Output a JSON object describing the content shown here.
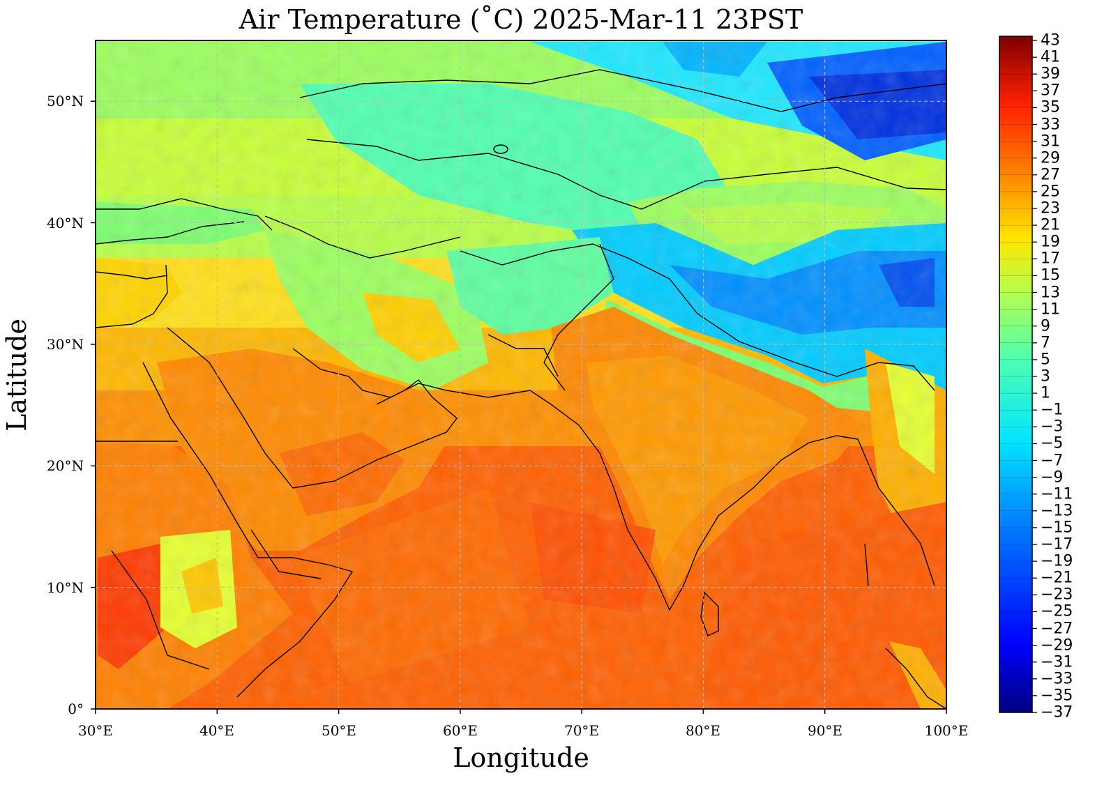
{
  "title": "Air Temperature (˚C)  2025-Mar-11 23PST",
  "xlabel": "Longitude",
  "ylabel": "Latitude",
  "map": {
    "variable": "Air Temperature",
    "units": "˚C",
    "lon_range": [
      30,
      100
    ],
    "lat_range": [
      0,
      55
    ],
    "grid": true,
    "xticks": [
      "30°E",
      "40°E",
      "50°E",
      "60°E",
      "70°E",
      "80°E",
      "90°E",
      "100°E"
    ],
    "yticks": [
      "0°",
      "10°N",
      "20°N",
      "30°N",
      "40°N",
      "50°N"
    ]
  },
  "colorbar": {
    "min": -37,
    "max": 43,
    "ticks": [
      "43",
      "41",
      "39",
      "37",
      "35",
      "33",
      "31",
      "29",
      "27",
      "25",
      "23",
      "21",
      "19",
      "17",
      "15",
      "13",
      "11",
      "9",
      "7",
      "5",
      "3",
      "1",
      "−1",
      "−3",
      "−5",
      "−7",
      "−9",
      "−11",
      "−13",
      "−15",
      "−17",
      "−19",
      "−21",
      "−23",
      "−25",
      "−27",
      "−29",
      "−31",
      "−33",
      "−35",
      "−37"
    ],
    "colormap": "jet",
    "color_stops": [
      "#000080",
      "#0000ff",
      "#0080ff",
      "#00e5ff",
      "#4dffb3",
      "#b3ff4d",
      "#ffe600",
      "#ff8000",
      "#ff2000",
      "#800000"
    ]
  }
}
